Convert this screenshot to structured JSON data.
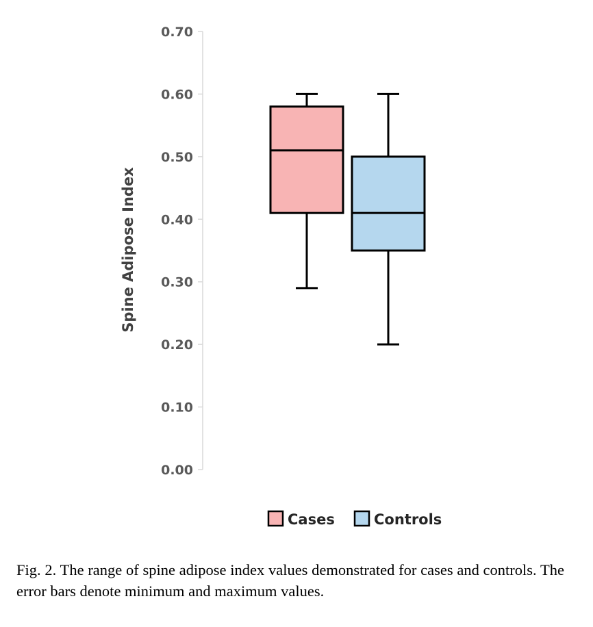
{
  "chart_data": {
    "type": "box",
    "ylabel": "Spine Adipose Index",
    "ylim": [
      0,
      0.7
    ],
    "yticks": [
      0.0,
      0.1,
      0.2,
      0.3,
      0.4,
      0.5,
      0.6,
      0.7
    ],
    "ytick_labels": [
      "0.00",
      "0.10",
      "0.20",
      "0.30",
      "0.40",
      "0.50",
      "0.60",
      "0.70"
    ],
    "grid": false,
    "legend_position": "bottom",
    "series": [
      {
        "name": "Cases",
        "min": 0.29,
        "q1": 0.41,
        "median": 0.51,
        "q3": 0.58,
        "max": 0.6,
        "color": "#f8b4b4"
      },
      {
        "name": "Controls",
        "min": 0.2,
        "q1": 0.35,
        "median": 0.41,
        "q3": 0.5,
        "max": 0.6,
        "color": "#b5d7ee"
      }
    ]
  },
  "caption": "Fig. 2. The range of spine adipose index values demonstrated for cases and controls. The error bars denote minimum and maximum values."
}
